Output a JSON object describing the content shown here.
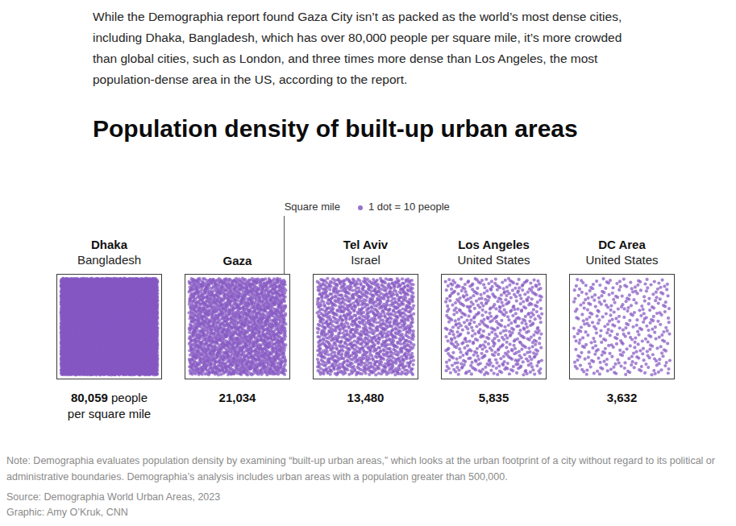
{
  "intro": "While the Demographia report found Gaza City isn’t as packed as the world’s most dense cities, including Dhaka, Bangladesh, which has over 80,000 people per square mile, it’s more crowded than global cities, such as London, and three times more dense than Los Angeles, the most population-dense area in the US, according to the report.",
  "chart_data": {
    "type": "dot_density",
    "title": "Population density of built-up urban areas",
    "square_label": "Square mile",
    "dot_label": "1 dot = 10 people",
    "people_per_dot": 10,
    "categories": [
      "Dhaka",
      "Gaza",
      "Tel Aviv",
      "Los Angeles",
      "DC Area"
    ],
    "subtitles": [
      "Bangladesh",
      null,
      "Israel",
      "United States",
      "United States"
    ],
    "values": [
      80059,
      21034,
      13480,
      5835,
      3632
    ],
    "value_labels": [
      "80,059",
      "21,034",
      "13,480",
      "5,835",
      "3,632"
    ],
    "unit_label_lines": [
      "people",
      "per square mile"
    ],
    "color": "#8557c2",
    "data_labels": true,
    "tick_labels": false
  },
  "note": "Note: Demographia evaluates population density by examining “built-up urban areas,” which looks at the urban footprint of a city without regard to its political or administrative boundaries. Demographia’s analysis includes urban areas with a population greater than 500,000.",
  "source": "Source: Demographia World Urban Areas, 2023",
  "credit": "Graphic: Amy O’Kruk, CNN"
}
